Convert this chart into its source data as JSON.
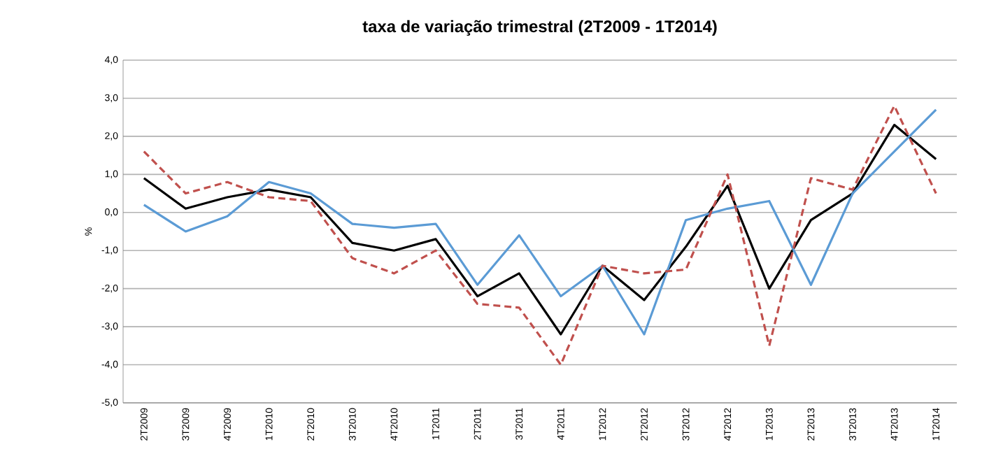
{
  "chart_data": {
    "type": "line",
    "title": "taxa de variação trimestral (2T2009 - 1T2014)",
    "ylabel": "%",
    "categories": [
      "2T2009",
      "3T2009",
      "4T2009",
      "1T2010",
      "2T2010",
      "3T2010",
      "4T2010",
      "1T2011",
      "2T2011",
      "3T2011",
      "4T2011",
      "1T2012",
      "2T2012",
      "3T2012",
      "4T2012",
      "1T2013",
      "2T2013",
      "3T2013",
      "4T2013",
      "1T2014"
    ],
    "series": [
      {
        "color": "#000000",
        "line_style": "solid",
        "values": [
          0.9,
          0.1,
          0.4,
          0.6,
          0.4,
          -0.8,
          -1.0,
          -0.7,
          -2.2,
          -1.6,
          -3.2,
          -1.4,
          -2.3,
          -0.9,
          0.7,
          -2.0,
          -0.2,
          0.5,
          2.3,
          1.4
        ]
      },
      {
        "color": "#5b9bd5",
        "line_style": "solid",
        "values": [
          0.2,
          -0.5,
          -0.1,
          0.8,
          0.5,
          -0.3,
          -0.4,
          -0.3,
          -1.9,
          -0.6,
          -2.2,
          -1.4,
          -3.2,
          -0.2,
          0.1,
          0.3,
          -1.9,
          0.5,
          1.6,
          2.7
        ]
      },
      {
        "color": "#c0504d",
        "line_style": "dashed",
        "values": [
          1.6,
          0.5,
          0.8,
          0.4,
          0.3,
          -1.2,
          -1.6,
          -1.0,
          -2.4,
          -2.5,
          -4.0,
          -1.4,
          -1.6,
          -1.5,
          1.0,
          -3.5,
          0.9,
          0.6,
          2.8,
          0.5
        ]
      }
    ],
    "ylim": [
      -5,
      4
    ],
    "yticks": [
      {
        "value": -5,
        "label": "-5,0"
      },
      {
        "value": -4,
        "label": "-4,0"
      },
      {
        "value": -3,
        "label": "-3,0"
      },
      {
        "value": -2,
        "label": "-2,0"
      },
      {
        "value": -1,
        "label": "-1,0"
      },
      {
        "value": 0,
        "label": "0,0"
      },
      {
        "value": 1,
        "label": "1,0"
      },
      {
        "value": 2,
        "label": "2,0"
      },
      {
        "value": 3,
        "label": "3,0"
      },
      {
        "value": 4,
        "label": "4,0"
      }
    ],
    "grid": "y",
    "marker": "none"
  }
}
